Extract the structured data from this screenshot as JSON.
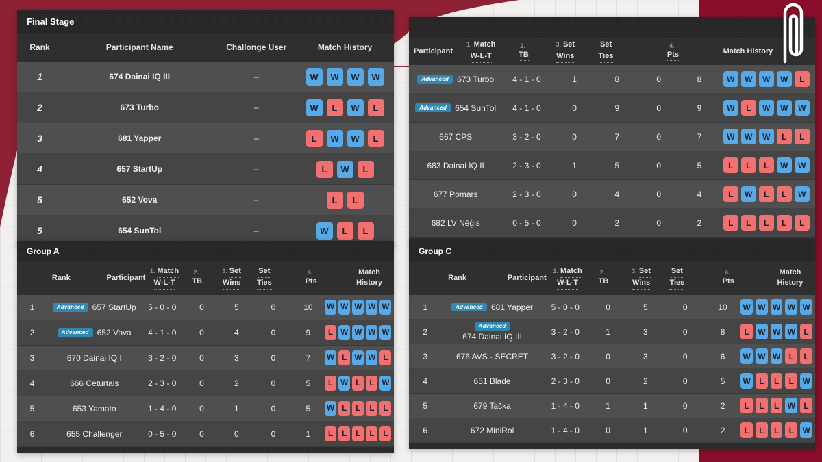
{
  "labels": {
    "advanced": "Advanced"
  },
  "colors": {
    "win_badge": "#57a9e8",
    "loss_badge": "#f37070",
    "advanced_badge": "#3287b2",
    "side_band": "#8a0e2b",
    "corner_blob": "#8e2133",
    "accent_line": "#a81e35",
    "row_light": "#4f4f4f",
    "row_dark": "#454545",
    "title_bar": "#262626"
  },
  "final_stage": {
    "title": "Final Stage",
    "headers": {
      "rank": "Rank",
      "name": "Participant Name",
      "challonge": "Challonge User",
      "history": "Match History"
    },
    "rows": [
      {
        "rank": "1",
        "name": "674 Dainai IQ III",
        "challonge": "–",
        "history": [
          "W",
          "W",
          "W",
          "W"
        ]
      },
      {
        "rank": "2",
        "name": "673 Turbo",
        "challonge": "–",
        "history": [
          "W",
          "L",
          "W",
          "L"
        ]
      },
      {
        "rank": "3",
        "name": "681 Yapper",
        "challonge": "–",
        "history": [
          "L",
          "W",
          "W",
          "L"
        ]
      },
      {
        "rank": "4",
        "name": "657 StartUp",
        "challonge": "–",
        "history": [
          "L",
          "W",
          "L"
        ]
      },
      {
        "rank": "5",
        "name": "652 Vova",
        "challonge": "–",
        "history": [
          "L",
          "L"
        ]
      },
      {
        "rank": "5",
        "name": "654 SunTol",
        "challonge": "–",
        "history": [
          "W",
          "L",
          "L"
        ]
      }
    ]
  },
  "group_b": {
    "title": "",
    "headers": [
      {
        "n": "",
        "w1": "Participant",
        "w2": "",
        "cls": "hw"
      },
      {
        "n": "1.",
        "w1": "Match",
        "w2": "W-L-T",
        "cls": "hw hu"
      },
      {
        "n": "2.",
        "w1": "",
        "w2": "TB",
        "cls": "hw hu"
      },
      {
        "n": "3.",
        "w1": "Set",
        "w2": "Wins",
        "cls": "hw hu"
      },
      {
        "n": "",
        "w1": "Set",
        "w2": "Ties",
        "cls": "hw hu"
      },
      {
        "n": "4.",
        "w1": "",
        "w2": "Pts",
        "cls": "hw hu"
      },
      {
        "n": "",
        "w1": "Match History",
        "w2": "",
        "cls": "hw"
      }
    ],
    "rows": [
      {
        "advanced": true,
        "name": "673 Turbo",
        "wlt": "4 - 1 - 0",
        "tb": "1",
        "sw": "8",
        "st": "0",
        "pts": "8",
        "history": [
          "W",
          "W",
          "W",
          "W",
          "L"
        ]
      },
      {
        "advanced": true,
        "name": "654 SunTol",
        "wlt": "4 - 1 - 0",
        "tb": "0",
        "sw": "9",
        "st": "0",
        "pts": "9",
        "history": [
          "W",
          "L",
          "W",
          "W",
          "W"
        ]
      },
      {
        "advanced": false,
        "name": "667 CPS",
        "wlt": "3 - 2 - 0",
        "tb": "0",
        "sw": "7",
        "st": "0",
        "pts": "7",
        "history": [
          "W",
          "W",
          "W",
          "L",
          "L"
        ]
      },
      {
        "advanced": false,
        "name": "683 Dainai IQ II",
        "wlt": "2 - 3 - 0",
        "tb": "1",
        "sw": "5",
        "st": "0",
        "pts": "5",
        "history": [
          "L",
          "L",
          "L",
          "W",
          "W"
        ]
      },
      {
        "advanced": false,
        "name": "677 Pomars",
        "wlt": "2 - 3 - 0",
        "tb": "0",
        "sw": "4",
        "st": "0",
        "pts": "4",
        "history": [
          "L",
          "W",
          "L",
          "L",
          "W"
        ]
      },
      {
        "advanced": false,
        "name": "682 LV Nēģis",
        "wlt": "0 - 5 - 0",
        "tb": "0",
        "sw": "2",
        "st": "0",
        "pts": "2",
        "history": [
          "L",
          "L",
          "L",
          "L",
          "L"
        ]
      }
    ]
  },
  "group_a": {
    "title": "Group A",
    "headers": [
      {
        "n": "",
        "w1": "Rank",
        "w2": "",
        "cls": "hw"
      },
      {
        "n": "",
        "w1": "Participant",
        "w2": "",
        "cls": "hw"
      },
      {
        "n": "1.",
        "w1": "Match",
        "w2": "W-L-T",
        "cls": "hw hu"
      },
      {
        "n": "2.",
        "w1": "",
        "w2": "TB",
        "cls": "hw hu"
      },
      {
        "n": "3.",
        "w1": "Set",
        "w2": "Wins",
        "cls": "hw hu"
      },
      {
        "n": "",
        "w1": "Set",
        "w2": "Ties",
        "cls": "hw hu"
      },
      {
        "n": "4.",
        "w1": "",
        "w2": "Pts",
        "cls": "hw hu"
      },
      {
        "n": "",
        "w1": "Match History",
        "w2": "",
        "cls": "hw"
      }
    ],
    "rows": [
      {
        "rank": "1",
        "advanced": true,
        "name": "657 StartUp",
        "wlt": "5 - 0 - 0",
        "tb": "0",
        "sw": "5",
        "st": "0",
        "pts": "10",
        "history": [
          "W",
          "W",
          "W",
          "W",
          "W"
        ]
      },
      {
        "rank": "2",
        "advanced": true,
        "name": "652 Vova",
        "wlt": "4 - 1 - 0",
        "tb": "0",
        "sw": "4",
        "st": "0",
        "pts": "9",
        "history": [
          "L",
          "W",
          "W",
          "W",
          "W"
        ]
      },
      {
        "rank": "3",
        "advanced": false,
        "name": "670 Dainai IQ I",
        "wlt": "3 - 2 - 0",
        "tb": "0",
        "sw": "3",
        "st": "0",
        "pts": "7",
        "history": [
          "W",
          "L",
          "W",
          "W",
          "L"
        ]
      },
      {
        "rank": "4",
        "advanced": false,
        "name": "666 Ceturtais",
        "wlt": "2 - 3 - 0",
        "tb": "0",
        "sw": "2",
        "st": "0",
        "pts": "5",
        "history": [
          "L",
          "W",
          "L",
          "L",
          "W"
        ]
      },
      {
        "rank": "5",
        "advanced": false,
        "name": "653 Yamato",
        "wlt": "1 - 4 - 0",
        "tb": "0",
        "sw": "1",
        "st": "0",
        "pts": "5",
        "history": [
          "W",
          "L",
          "L",
          "L",
          "L"
        ]
      },
      {
        "rank": "6",
        "advanced": false,
        "name": "655 Challenger",
        "wlt": "0 - 5 - 0",
        "tb": "0",
        "sw": "0",
        "st": "0",
        "pts": "1",
        "history": [
          "L",
          "L",
          "L",
          "L",
          "L"
        ]
      }
    ]
  },
  "group_c": {
    "title": "Group C",
    "headers": [
      {
        "n": "",
        "w1": "Rank",
        "w2": "",
        "cls": "hw"
      },
      {
        "n": "",
        "w1": "Participant",
        "w2": "",
        "cls": "hw"
      },
      {
        "n": "1.",
        "w1": "Match",
        "w2": "W-L-T",
        "cls": "hw hu"
      },
      {
        "n": "2.",
        "w1": "",
        "w2": "TB",
        "cls": "hw hu"
      },
      {
        "n": "3.",
        "w1": "Set",
        "w2": "Wins",
        "cls": "hw hu"
      },
      {
        "n": "",
        "w1": "Set",
        "w2": "Ties",
        "cls": "hw hu"
      },
      {
        "n": "4.",
        "w1": "",
        "w2": "Pts",
        "cls": "hw hu"
      },
      {
        "n": "",
        "w1": "Match History",
        "w2": "",
        "cls": "hw"
      }
    ],
    "rows": [
      {
        "rank": "1",
        "advanced": true,
        "name": "681 Yapper",
        "wlt": "5 - 0 - 0",
        "tb": "0",
        "sw": "5",
        "st": "0",
        "pts": "10",
        "history": [
          "W",
          "W",
          "W",
          "W",
          "W"
        ]
      },
      {
        "rank": "2",
        "advanced": true,
        "name": "674 Dainai IQ III",
        "wlt": "3 - 2 - 0",
        "tb": "1",
        "sw": "3",
        "st": "0",
        "pts": "8",
        "history": [
          "L",
          "W",
          "W",
          "W",
          "L"
        ]
      },
      {
        "rank": "3",
        "advanced": false,
        "name": "676 AVS - SECRET",
        "wlt": "3 - 2 - 0",
        "tb": "0",
        "sw": "3",
        "st": "0",
        "pts": "6",
        "history": [
          "W",
          "W",
          "W",
          "L",
          "L"
        ]
      },
      {
        "rank": "4",
        "advanced": false,
        "name": "651 Blade",
        "wlt": "2 - 3 - 0",
        "tb": "0",
        "sw": "2",
        "st": "0",
        "pts": "5",
        "history": [
          "W",
          "L",
          "L",
          "L",
          "W"
        ]
      },
      {
        "rank": "5",
        "advanced": false,
        "name": "679 Tačka",
        "wlt": "1 - 4 - 0",
        "tb": "1",
        "sw": "1",
        "st": "0",
        "pts": "2",
        "history": [
          "L",
          "L",
          "L",
          "W",
          "L"
        ]
      },
      {
        "rank": "6",
        "advanced": false,
        "name": "672 MiniRol",
        "wlt": "1 - 4 - 0",
        "tb": "0",
        "sw": "1",
        "st": "0",
        "pts": "2",
        "history": [
          "L",
          "L",
          "L",
          "L",
          "W"
        ]
      }
    ]
  }
}
